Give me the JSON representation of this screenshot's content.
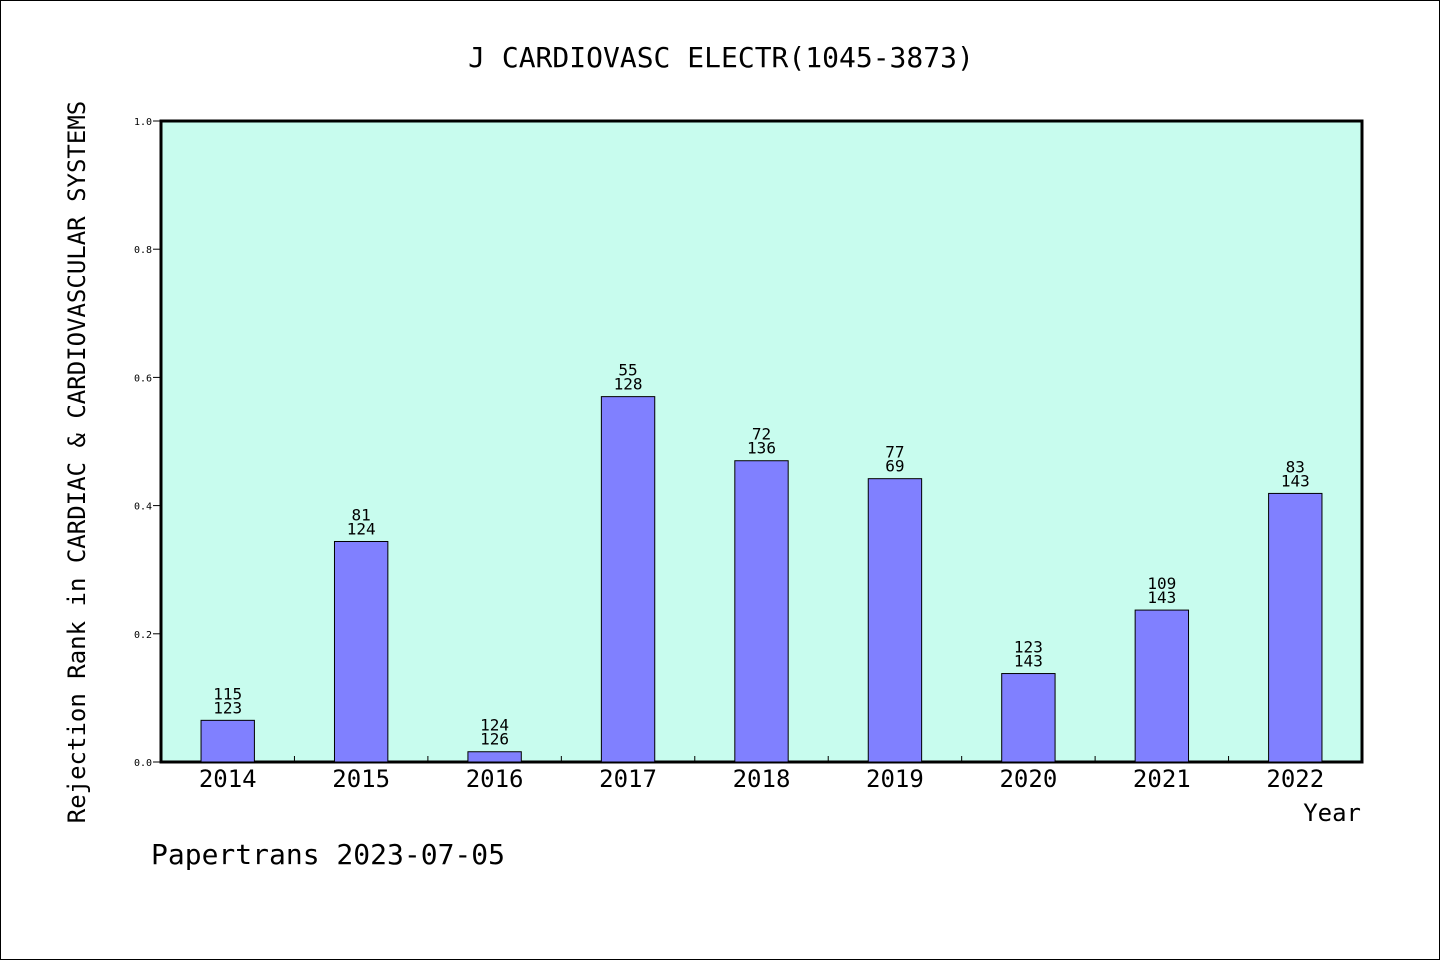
{
  "chart_data": {
    "type": "bar",
    "title": "J CARDIOVASC ELECTR(1045-3873)",
    "xlabel": "Year",
    "ylabel": "Rejection Rank in CARDIAC & CARDIOVASCULAR SYSTEMS",
    "ylim": [
      0,
      1.0
    ],
    "yticks": [
      "0.0",
      "0.2",
      "0.4",
      "0.6",
      "0.8",
      "1.0"
    ],
    "categories": [
      "2014",
      "2015",
      "2016",
      "2017",
      "2018",
      "2019",
      "2020",
      "2021",
      "2022"
    ],
    "values": [
      0.065,
      0.344,
      0.016,
      0.57,
      0.47,
      0.442,
      0.138,
      0.237,
      0.419
    ],
    "labels_top": [
      "115",
      "81",
      "124",
      "55",
      "72",
      "77",
      "123",
      "109",
      "83"
    ],
    "labels_bottom": [
      "123",
      "124",
      "126",
      "128",
      "136",
      "69",
      "143",
      "143",
      "143"
    ],
    "grid": false,
    "legend": "none",
    "colors": {
      "plot_background": "#c8fcee",
      "bar_fill": "#8080ff",
      "bar_stroke": "#000000"
    }
  },
  "footer": {
    "text": "Papertrans 2023-07-05"
  }
}
